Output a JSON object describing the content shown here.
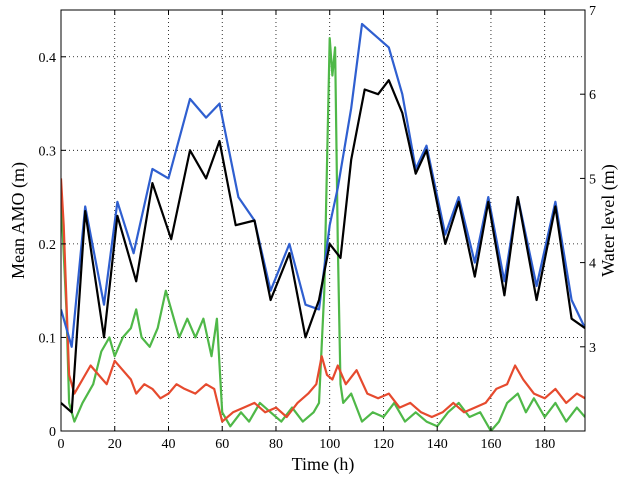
{
  "chart_data": {
    "type": "line",
    "title": "",
    "xlabel": "Time (h)",
    "ylabel_left": "Mean AMO (m)",
    "ylabel_right": "Water level (m)",
    "xlim": [
      0,
      195
    ],
    "ylim_left": [
      0,
      0.45
    ],
    "ylim_right": [
      2,
      7
    ],
    "xticks": [
      0,
      20,
      40,
      60,
      80,
      100,
      120,
      140,
      160,
      180
    ],
    "yticks_left": [
      0,
      0.1,
      0.2,
      0.3,
      0.4
    ],
    "yticks_right": [
      3,
      4,
      5,
      6,
      7
    ],
    "grid": true,
    "legend": "none",
    "series": [
      {
        "color": "#2f5fd0",
        "axis": "left",
        "points": [
          [
            0,
            0.13
          ],
          [
            4,
            0.09
          ],
          [
            9,
            0.24
          ],
          [
            16,
            0.135
          ],
          [
            21,
            0.245
          ],
          [
            27,
            0.19
          ],
          [
            34,
            0.28
          ],
          [
            40,
            0.27
          ],
          [
            48,
            0.355
          ],
          [
            54,
            0.335
          ],
          [
            59,
            0.35
          ],
          [
            66,
            0.25
          ],
          [
            72,
            0.225
          ],
          [
            78,
            0.15
          ],
          [
            85,
            0.2
          ],
          [
            91,
            0.135
          ],
          [
            96,
            0.13
          ],
          [
            100,
            0.22
          ],
          [
            103,
            0.26
          ],
          [
            108,
            0.345
          ],
          [
            112,
            0.435
          ],
          [
            118,
            0.42
          ],
          [
            122,
            0.41
          ],
          [
            127,
            0.36
          ],
          [
            132,
            0.28
          ],
          [
            136,
            0.305
          ],
          [
            143,
            0.21
          ],
          [
            148,
            0.25
          ],
          [
            154,
            0.18
          ],
          [
            159,
            0.25
          ],
          [
            165,
            0.16
          ],
          [
            170,
            0.25
          ],
          [
            177,
            0.155
          ],
          [
            184,
            0.245
          ],
          [
            190,
            0.14
          ],
          [
            195,
            0.11
          ]
        ]
      },
      {
        "color": "#000000",
        "axis": "left",
        "points": [
          [
            0,
            0.03
          ],
          [
            4,
            0.02
          ],
          [
            9,
            0.235
          ],
          [
            16,
            0.1
          ],
          [
            21,
            0.23
          ],
          [
            28,
            0.16
          ],
          [
            34,
            0.265
          ],
          [
            41,
            0.205
          ],
          [
            48,
            0.3
          ],
          [
            54,
            0.27
          ],
          [
            59,
            0.31
          ],
          [
            65,
            0.22
          ],
          [
            72,
            0.225
          ],
          [
            78,
            0.14
          ],
          [
            85,
            0.19
          ],
          [
            91,
            0.1
          ],
          [
            96,
            0.14
          ],
          [
            100,
            0.2
          ],
          [
            104,
            0.185
          ],
          [
            108,
            0.29
          ],
          [
            113,
            0.365
          ],
          [
            118,
            0.36
          ],
          [
            122,
            0.375
          ],
          [
            127,
            0.34
          ],
          [
            132,
            0.275
          ],
          [
            136,
            0.3
          ],
          [
            143,
            0.2
          ],
          [
            148,
            0.245
          ],
          [
            154,
            0.165
          ],
          [
            159,
            0.245
          ],
          [
            165,
            0.145
          ],
          [
            170,
            0.25
          ],
          [
            177,
            0.14
          ],
          [
            184,
            0.24
          ],
          [
            190,
            0.12
          ],
          [
            195,
            0.11
          ]
        ]
      },
      {
        "color": "#e64a2e",
        "axis": "left",
        "points": [
          [
            0,
            0.27
          ],
          [
            1,
            0.22
          ],
          [
            3,
            0.06
          ],
          [
            5,
            0.04
          ],
          [
            8,
            0.055
          ],
          [
            11,
            0.07
          ],
          [
            14,
            0.06
          ],
          [
            17,
            0.05
          ],
          [
            20,
            0.075
          ],
          [
            23,
            0.065
          ],
          [
            26,
            0.055
          ],
          [
            28,
            0.04
          ],
          [
            31,
            0.05
          ],
          [
            34,
            0.045
          ],
          [
            37,
            0.035
          ],
          [
            40,
            0.04
          ],
          [
            43,
            0.05
          ],
          [
            46,
            0.045
          ],
          [
            50,
            0.04
          ],
          [
            54,
            0.05
          ],
          [
            57,
            0.045
          ],
          [
            60,
            0.01
          ],
          [
            64,
            0.02
          ],
          [
            68,
            0.025
          ],
          [
            72,
            0.03
          ],
          [
            76,
            0.02
          ],
          [
            80,
            0.025
          ],
          [
            84,
            0.015
          ],
          [
            88,
            0.03
          ],
          [
            92,
            0.04
          ],
          [
            95,
            0.05
          ],
          [
            97,
            0.08
          ],
          [
            99,
            0.06
          ],
          [
            101,
            0.055
          ],
          [
            103,
            0.07
          ],
          [
            106,
            0.05
          ],
          [
            110,
            0.065
          ],
          [
            114,
            0.04
          ],
          [
            118,
            0.035
          ],
          [
            122,
            0.04
          ],
          [
            126,
            0.025
          ],
          [
            130,
            0.03
          ],
          [
            134,
            0.02
          ],
          [
            138,
            0.015
          ],
          [
            142,
            0.02
          ],
          [
            146,
            0.03
          ],
          [
            150,
            0.02
          ],
          [
            154,
            0.025
          ],
          [
            158,
            0.03
          ],
          [
            162,
            0.045
          ],
          [
            166,
            0.05
          ],
          [
            169,
            0.07
          ],
          [
            172,
            0.055
          ],
          [
            176,
            0.04
          ],
          [
            180,
            0.035
          ],
          [
            184,
            0.045
          ],
          [
            188,
            0.03
          ],
          [
            192,
            0.04
          ],
          [
            195,
            0.035
          ]
        ]
      },
      {
        "color": "#4fb848",
        "axis": "left",
        "points": [
          [
            0,
            0.25
          ],
          [
            2,
            0.13
          ],
          [
            3,
            0.03
          ],
          [
            5,
            0.01
          ],
          [
            8,
            0.03
          ],
          [
            12,
            0.05
          ],
          [
            15,
            0.085
          ],
          [
            18,
            0.1
          ],
          [
            20,
            0.08
          ],
          [
            23,
            0.1
          ],
          [
            26,
            0.11
          ],
          [
            28,
            0.13
          ],
          [
            30,
            0.1
          ],
          [
            33,
            0.09
          ],
          [
            36,
            0.11
          ],
          [
            39,
            0.15
          ],
          [
            41,
            0.13
          ],
          [
            44,
            0.1
          ],
          [
            47,
            0.12
          ],
          [
            50,
            0.1
          ],
          [
            53,
            0.12
          ],
          [
            56,
            0.08
          ],
          [
            58,
            0.12
          ],
          [
            60,
            0.02
          ],
          [
            63,
            0.005
          ],
          [
            67,
            0.02
          ],
          [
            70,
            0.01
          ],
          [
            74,
            0.03
          ],
          [
            78,
            0.02
          ],
          [
            82,
            0.01
          ],
          [
            86,
            0.025
          ],
          [
            90,
            0.01
          ],
          [
            94,
            0.02
          ],
          [
            96,
            0.03
          ],
          [
            98,
            0.15
          ],
          [
            100,
            0.42
          ],
          [
            101,
            0.38
          ],
          [
            102,
            0.41
          ],
          [
            103,
            0.2
          ],
          [
            104,
            0.05
          ],
          [
            105,
            0.03
          ],
          [
            108,
            0.04
          ],
          [
            112,
            0.01
          ],
          [
            116,
            0.02
          ],
          [
            120,
            0.015
          ],
          [
            124,
            0.03
          ],
          [
            128,
            0.01
          ],
          [
            132,
            0.02
          ],
          [
            136,
            0.01
          ],
          [
            140,
            0.005
          ],
          [
            144,
            0.02
          ],
          [
            148,
            0.03
          ],
          [
            152,
            0.015
          ],
          [
            156,
            0.02
          ],
          [
            160,
            0.0
          ],
          [
            163,
            0.01
          ],
          [
            166,
            0.03
          ],
          [
            170,
            0.04
          ],
          [
            173,
            0.02
          ],
          [
            176,
            0.035
          ],
          [
            180,
            0.015
          ],
          [
            184,
            0.03
          ],
          [
            188,
            0.01
          ],
          [
            192,
            0.025
          ],
          [
            195,
            0.015
          ]
        ]
      }
    ]
  }
}
